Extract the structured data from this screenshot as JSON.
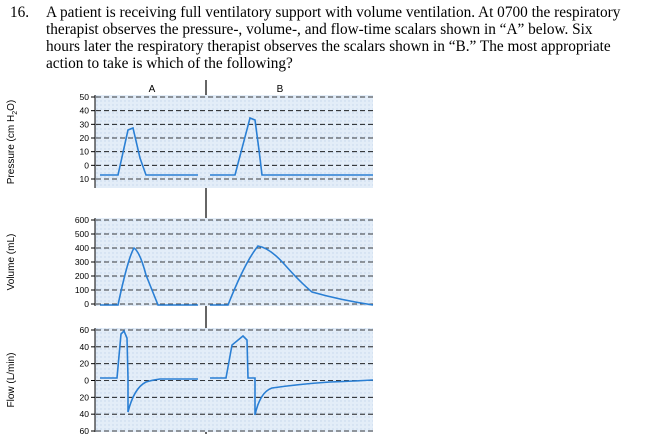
{
  "question": {
    "number": "16.",
    "lines": [
      "A patient is receiving full ventilatory support with volume ventilation. At 0700 the respiratory",
      "therapist observes the pressure-, volume-, and flow-time scalars shown in “A” below. Six",
      "hours later the respiratory therapist observes the scalars shown in “B.” The most appropriate",
      "action to take is which of the following?"
    ]
  },
  "figure": {
    "column_labels": [
      "A",
      "B"
    ],
    "panels": [
      {
        "id": "pressure",
        "ylabel_main": "Pressure (cm H",
        "ylabel_sub": "2",
        "ylabel_end": "O)",
        "ticks": [
          "50",
          "40",
          "30",
          "20",
          "10",
          "0",
          "10"
        ],
        "tick_values": [
          50,
          40,
          30,
          20,
          10,
          0,
          -10
        ]
      },
      {
        "id": "volume",
        "ylabel_main": "Volume (mL)",
        "ticks": [
          "600",
          "500",
          "400",
          "300",
          "200",
          "100",
          "0"
        ],
        "tick_values": [
          600,
          500,
          400,
          300,
          200,
          100,
          0
        ]
      },
      {
        "id": "flow",
        "ylabel_main": "Flow (L/min)",
        "ticks": [
          "60",
          "40",
          "20",
          "0",
          "20",
          "40",
          "60"
        ],
        "tick_values": [
          60,
          40,
          20,
          0,
          -20,
          -40,
          -60
        ]
      }
    ],
    "waveform_color": "#2a7fd4",
    "grid_fill": "#e3edf8"
  }
}
